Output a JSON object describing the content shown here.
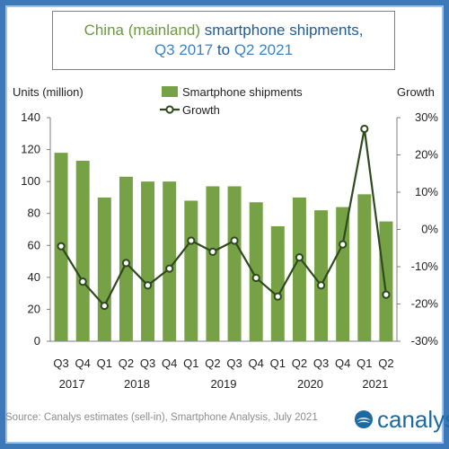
{
  "title": {
    "prefix": "China (mainland)",
    "rest": " smartphone shipments,",
    "line2_a": "Q3 2017",
    "line2_b": " to ",
    "line2_c": "Q2 2021"
  },
  "source": "Source: Canalys estimates (sell-in), Smartphone Analysis, July 2021",
  "logo_text": "canalys",
  "colors": {
    "bar": "#76a245",
    "line": "#2f4a1e",
    "title_highlight": "#6a9a3a",
    "title_blue": "#3b84c4",
    "brand": "#1b6aa3"
  },
  "chart_data": {
    "type": "bar",
    "title": "China (mainland) smartphone shipments, Q3 2017 to Q2 2021",
    "ylabel": "Units (million)",
    "y2label": "Growth",
    "categories": [
      "Q3",
      "Q4",
      "Q1",
      "Q2",
      "Q3",
      "Q4",
      "Q1",
      "Q2",
      "Q3",
      "Q4",
      "Q1",
      "Q2",
      "Q3",
      "Q4",
      "Q1",
      "Q2"
    ],
    "year_labels": [
      {
        "label": "2017",
        "from": 0,
        "to": 1
      },
      {
        "label": "2018",
        "from": 2,
        "to": 5
      },
      {
        "label": "2019",
        "from": 6,
        "to": 9
      },
      {
        "label": "2020",
        "from": 10,
        "to": 13
      },
      {
        "label": "2021",
        "from": 14,
        "to": 15
      }
    ],
    "ylim": [
      0,
      140
    ],
    "yticks": [
      "0",
      "20",
      "40",
      "60",
      "80",
      "100",
      "120",
      "140"
    ],
    "y2lim": [
      -30,
      30
    ],
    "y2ticks": [
      "-30%",
      "-20%",
      "-10%",
      "0%",
      "10%",
      "20%",
      "30%"
    ],
    "legend_position": "top-center",
    "series": [
      {
        "name": "Smartphone shipments",
        "kind": "bar",
        "values": [
          118,
          113,
          90,
          103,
          100,
          100,
          88,
          97,
          97,
          87,
          72,
          90,
          82,
          84,
          92,
          75
        ]
      },
      {
        "name": "Growth",
        "kind": "line",
        "axis": "right",
        "values": [
          -4.5,
          -14,
          -20.5,
          -9,
          -15,
          -10.5,
          -3,
          -6,
          -3,
          -13,
          -18,
          -7.5,
          -15,
          -4,
          27,
          -17.5
        ]
      }
    ]
  }
}
